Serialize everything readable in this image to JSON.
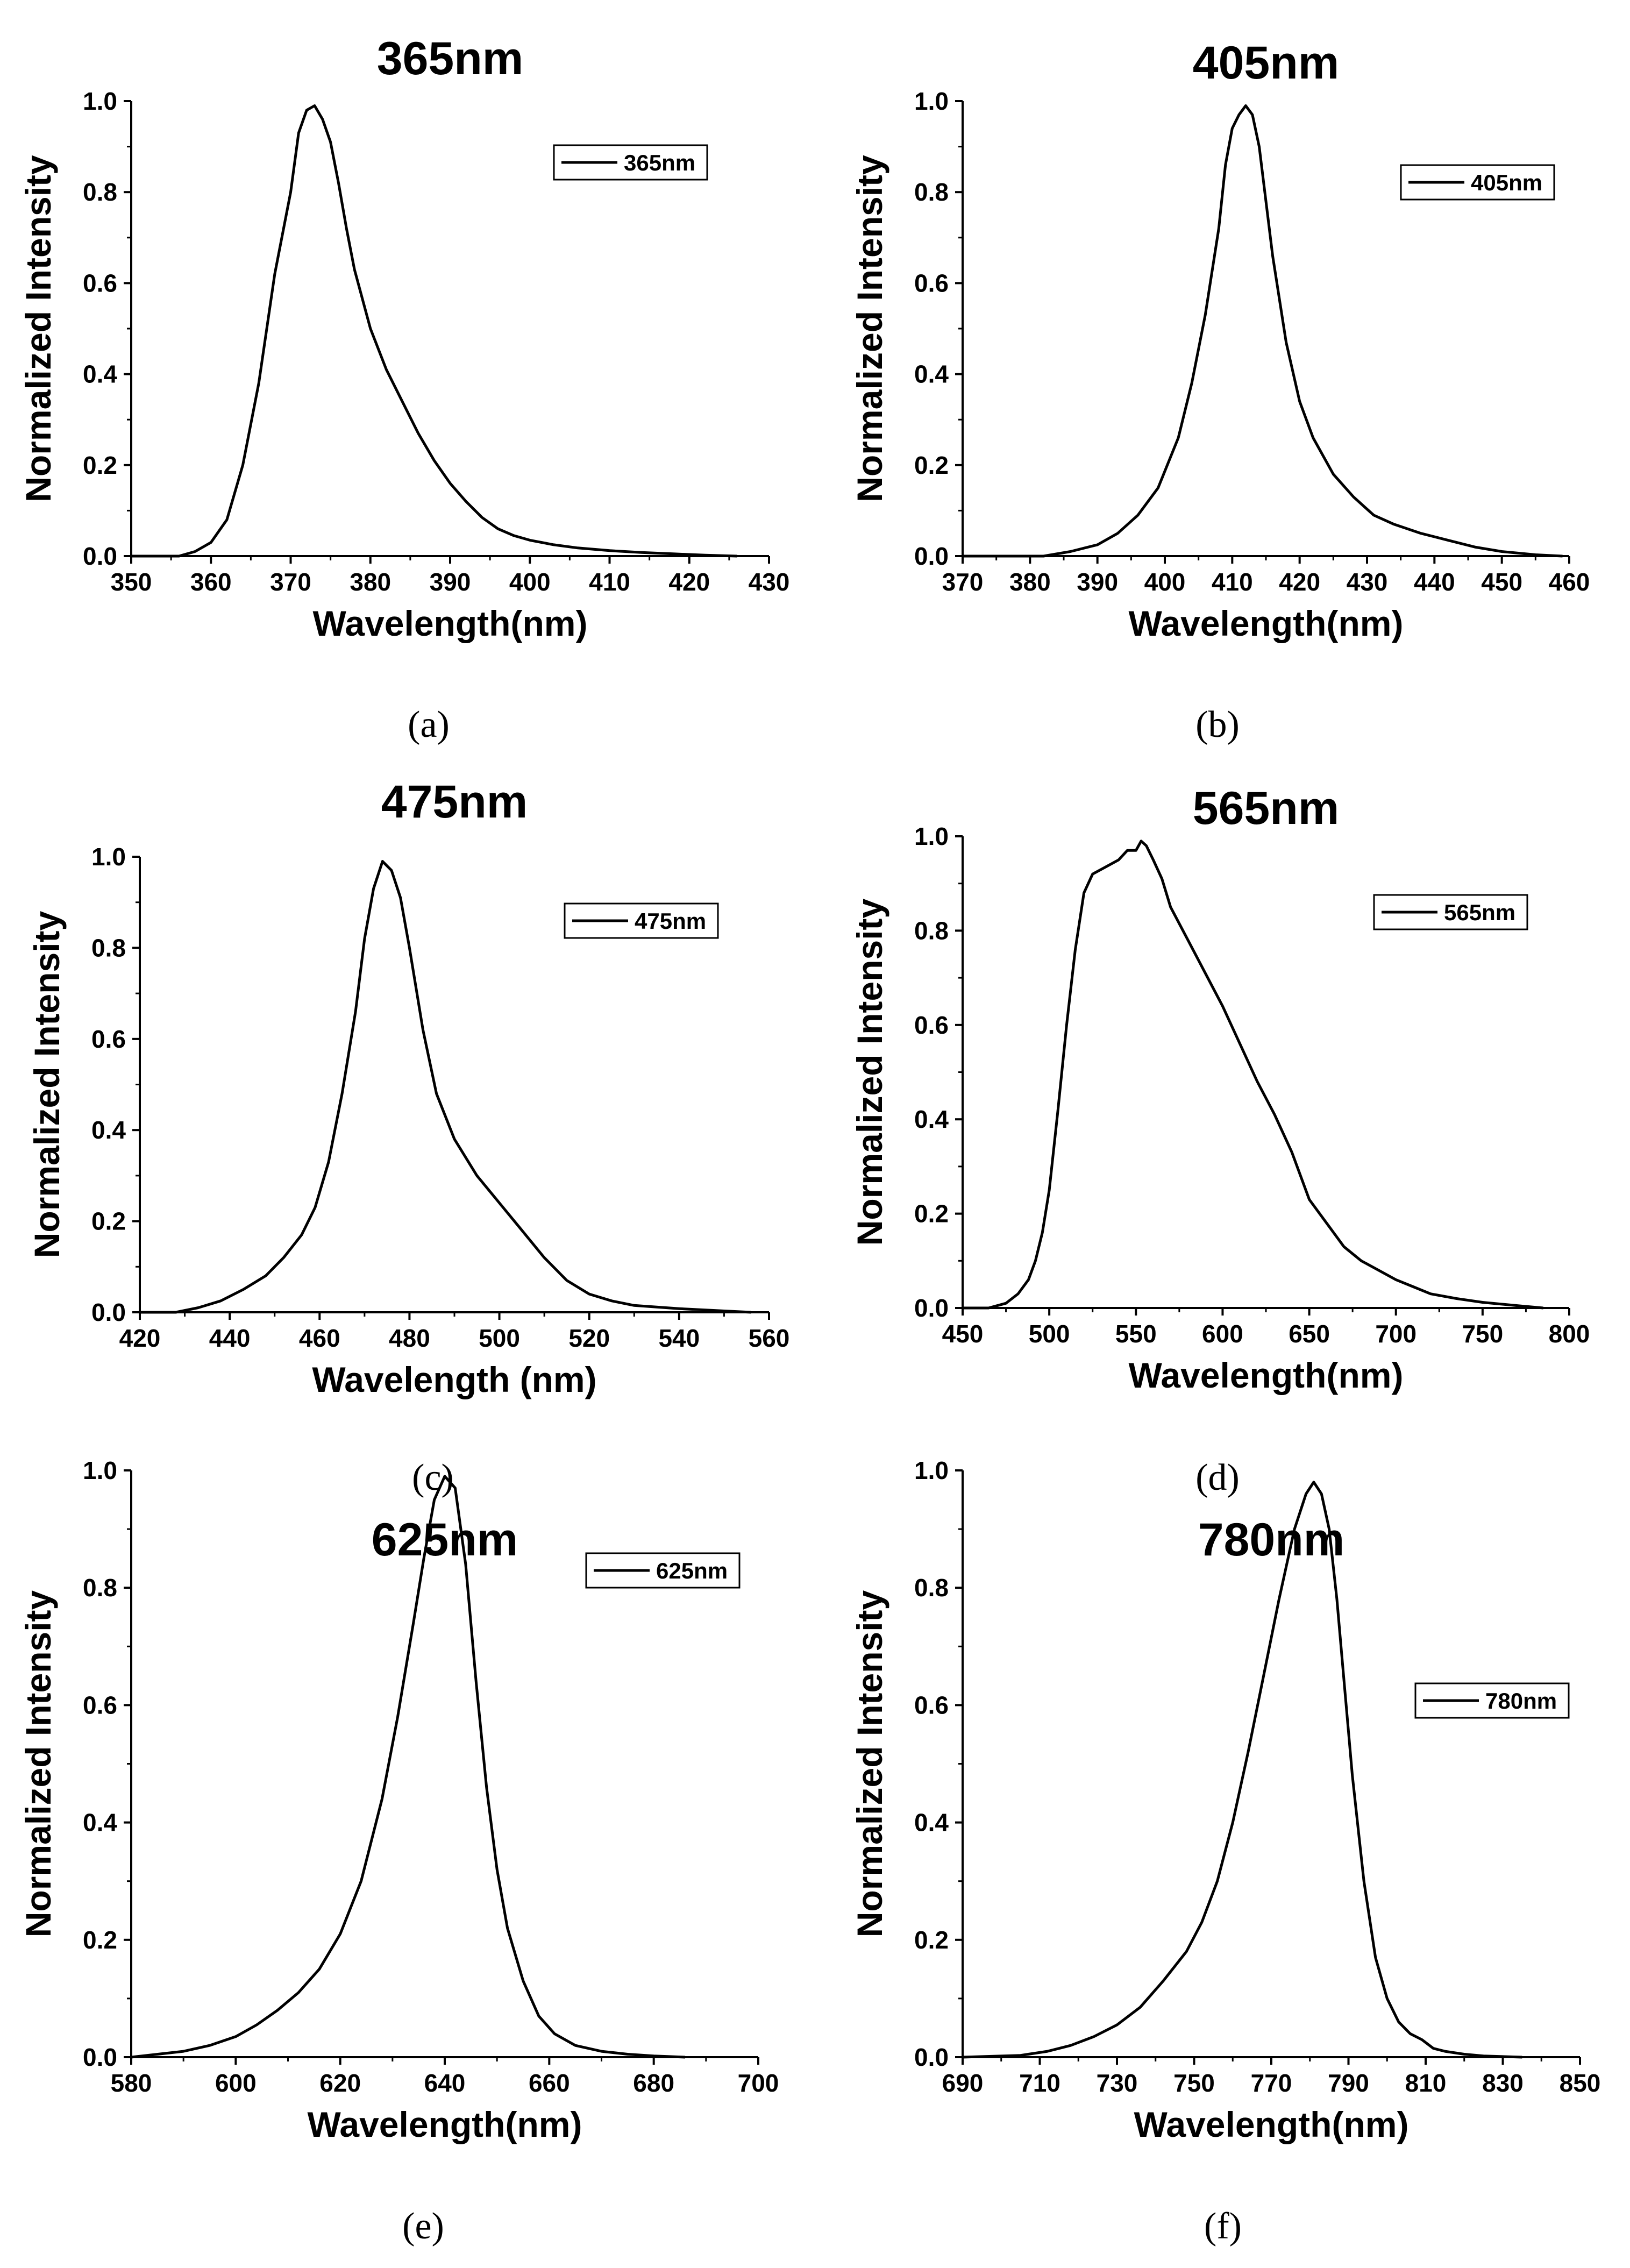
{
  "chart_data": [
    {
      "type": "line",
      "panel": "(a)",
      "title": "365nm",
      "xlabel": "Wavelength(nm)",
      "ylabel": "Normalized Intensity",
      "xlim": [
        350,
        430
      ],
      "ylim": [
        0,
        1.0
      ],
      "xticks": [
        350,
        360,
        370,
        380,
        390,
        400,
        410,
        420,
        430
      ],
      "yticks": [
        0.0,
        0.2,
        0.4,
        0.6,
        0.8,
        1.0
      ],
      "legend": "top-right",
      "series": [
        {
          "name": "365nm",
          "x": [
            350,
            356,
            358,
            360,
            362,
            364,
            366,
            368,
            370,
            371,
            372,
            373,
            374,
            375,
            376,
            377,
            378,
            380,
            382,
            384,
            386,
            388,
            390,
            392,
            394,
            396,
            398,
            400,
            403,
            406,
            410,
            414,
            418,
            422,
            426
          ],
          "y": [
            0,
            0.0,
            0.01,
            0.03,
            0.08,
            0.2,
            0.38,
            0.62,
            0.8,
            0.93,
            0.98,
            0.99,
            0.96,
            0.91,
            0.82,
            0.72,
            0.63,
            0.5,
            0.41,
            0.34,
            0.27,
            0.21,
            0.16,
            0.12,
            0.085,
            0.06,
            0.045,
            0.035,
            0.025,
            0.018,
            0.012,
            0.008,
            0.005,
            0.002,
            0.0
          ]
        }
      ]
    },
    {
      "type": "line",
      "panel": "(b)",
      "title": "405nm",
      "xlabel": "Wavelength(nm)",
      "ylabel": "Normalized Intensity",
      "xlim": [
        370,
        460
      ],
      "ylim": [
        0,
        1.0
      ],
      "xticks": [
        370,
        380,
        390,
        400,
        410,
        420,
        430,
        440,
        450,
        460
      ],
      "yticks": [
        0.0,
        0.2,
        0.4,
        0.6,
        0.8,
        1.0
      ],
      "legend": "top-right",
      "series": [
        {
          "name": "405nm",
          "x": [
            370,
            382,
            386,
            390,
            393,
            396,
            399,
            402,
            404,
            406,
            408,
            409,
            410,
            411,
            412,
            413,
            414,
            415,
            416,
            418,
            420,
            422,
            425,
            428,
            431,
            434,
            438,
            442,
            446,
            450,
            455,
            459
          ],
          "y": [
            0,
            0.0,
            0.01,
            0.025,
            0.05,
            0.09,
            0.15,
            0.26,
            0.38,
            0.53,
            0.72,
            0.86,
            0.94,
            0.97,
            0.99,
            0.97,
            0.9,
            0.78,
            0.66,
            0.47,
            0.34,
            0.26,
            0.18,
            0.13,
            0.09,
            0.07,
            0.05,
            0.035,
            0.02,
            0.01,
            0.003,
            0.0
          ]
        }
      ]
    },
    {
      "type": "line",
      "panel": "(c)",
      "title": "475nm",
      "xlabel": "Wavelength (nm)",
      "ylabel": "Normalized Intensity",
      "xlim": [
        420,
        560
      ],
      "ylim": [
        0,
        1.0
      ],
      "xticks": [
        420,
        440,
        460,
        480,
        500,
        520,
        540,
        560
      ],
      "yticks": [
        0.0,
        0.2,
        0.4,
        0.6,
        0.8,
        1.0
      ],
      "legend": "top-right",
      "series": [
        {
          "name": "475nm",
          "x": [
            420,
            428,
            433,
            438,
            443,
            448,
            452,
            456,
            459,
            462,
            465,
            468,
            470,
            472,
            474,
            476,
            478,
            480,
            483,
            486,
            490,
            495,
            500,
            505,
            510,
            515,
            520,
            525,
            530,
            540,
            550,
            556
          ],
          "y": [
            0,
            0.0,
            0.01,
            0.025,
            0.05,
            0.08,
            0.12,
            0.17,
            0.23,
            0.33,
            0.48,
            0.66,
            0.82,
            0.93,
            0.99,
            0.97,
            0.91,
            0.8,
            0.62,
            0.48,
            0.38,
            0.3,
            0.24,
            0.18,
            0.12,
            0.07,
            0.04,
            0.025,
            0.015,
            0.008,
            0.003,
            0.0
          ]
        }
      ]
    },
    {
      "type": "line",
      "panel": "(d)",
      "title": "565nm",
      "xlabel": "Wavelength(nm)",
      "ylabel": "Normalized Intensity",
      "xlim": [
        450,
        800
      ],
      "ylim": [
        0,
        1.0
      ],
      "xticks": [
        450,
        500,
        550,
        600,
        650,
        700,
        750,
        800
      ],
      "yticks": [
        0.0,
        0.2,
        0.4,
        0.6,
        0.8,
        1.0
      ],
      "legend": "top-right",
      "series": [
        {
          "name": "565nm",
          "x": [
            450,
            465,
            475,
            482,
            488,
            492,
            496,
            500,
            505,
            510,
            515,
            520,
            525,
            530,
            540,
            545,
            550,
            553,
            556,
            560,
            565,
            570,
            580,
            590,
            600,
            610,
            620,
            630,
            640,
            650,
            660,
            670,
            680,
            690,
            700,
            710,
            720,
            735,
            750,
            770,
            785
          ],
          "y": [
            0,
            0.0,
            0.01,
            0.03,
            0.06,
            0.1,
            0.16,
            0.25,
            0.42,
            0.6,
            0.76,
            0.88,
            0.92,
            0.93,
            0.95,
            0.97,
            0.97,
            0.99,
            0.98,
            0.95,
            0.91,
            0.85,
            0.78,
            0.71,
            0.64,
            0.56,
            0.48,
            0.41,
            0.33,
            0.23,
            0.18,
            0.13,
            0.1,
            0.08,
            0.06,
            0.045,
            0.03,
            0.02,
            0.012,
            0.005,
            0.0
          ]
        }
      ]
    },
    {
      "type": "line",
      "panel": "(e)",
      "title": "625nm",
      "xlabel": "Wavelength(nm)",
      "ylabel": "Normalized Intensity",
      "xlim": [
        580,
        700
      ],
      "ylim": [
        0,
        1.0
      ],
      "xticks": [
        580,
        600,
        620,
        640,
        660,
        680,
        700
      ],
      "yticks": [
        0.0,
        0.2,
        0.4,
        0.6,
        0.8,
        1.0
      ],
      "legend": "top-right",
      "series": [
        {
          "name": "625nm",
          "x": [
            580,
            590,
            595,
            600,
            604,
            608,
            612,
            616,
            620,
            624,
            628,
            631,
            634,
            636,
            638,
            640,
            642,
            644,
            646,
            648,
            650,
            652,
            655,
            658,
            661,
            665,
            670,
            675,
            680,
            686
          ],
          "y": [
            0,
            0.01,
            0.02,
            0.035,
            0.055,
            0.08,
            0.11,
            0.15,
            0.21,
            0.3,
            0.44,
            0.58,
            0.74,
            0.85,
            0.95,
            0.99,
            0.97,
            0.84,
            0.64,
            0.46,
            0.32,
            0.22,
            0.13,
            0.07,
            0.04,
            0.02,
            0.01,
            0.005,
            0.002,
            0.0
          ]
        }
      ]
    },
    {
      "type": "line",
      "panel": "(f)",
      "title": "780nm",
      "xlabel": "Wavelength(nm)",
      "ylabel": "Normalized Intensity",
      "xlim": [
        690,
        850
      ],
      "ylim": [
        0,
        1.0
      ],
      "xticks": [
        690,
        710,
        730,
        750,
        770,
        790,
        810,
        830,
        850
      ],
      "yticks": [
        0.0,
        0.2,
        0.4,
        0.6,
        0.8,
        1.0
      ],
      "legend": "top-right",
      "series": [
        {
          "name": "780nm",
          "x": [
            690,
            705,
            712,
            718,
            724,
            730,
            736,
            742,
            748,
            752,
            756,
            760,
            764,
            768,
            772,
            776,
            779,
            781,
            783,
            785,
            787,
            789,
            791,
            794,
            797,
            800,
            803,
            806,
            809,
            812,
            815,
            820,
            825,
            835
          ],
          "y": [
            0,
            0.003,
            0.01,
            0.02,
            0.035,
            0.055,
            0.085,
            0.13,
            0.18,
            0.23,
            0.3,
            0.4,
            0.52,
            0.65,
            0.78,
            0.9,
            0.96,
            0.98,
            0.96,
            0.9,
            0.78,
            0.63,
            0.48,
            0.3,
            0.17,
            0.1,
            0.06,
            0.04,
            0.03,
            0.015,
            0.01,
            0.005,
            0.002,
            0.0
          ]
        }
      ]
    }
  ]
}
